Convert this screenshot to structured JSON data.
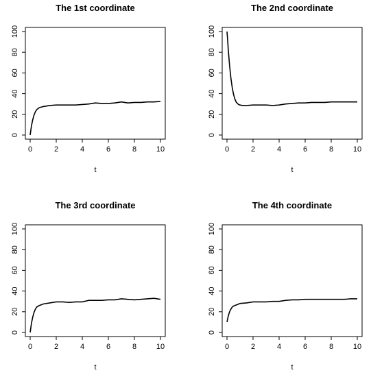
{
  "chart_data": [
    {
      "type": "line",
      "title": "The 1st coordinate",
      "xlabel": "t",
      "ylabel": "",
      "xlim": [
        0,
        10
      ],
      "ylim": [
        0,
        100
      ],
      "xticks": [
        0,
        2,
        4,
        6,
        8,
        10
      ],
      "yticks": [
        0,
        20,
        40,
        60,
        80,
        100
      ],
      "grid": false,
      "x": [
        0,
        0.1,
        0.2,
        0.3,
        0.4,
        0.5,
        0.7,
        1.0,
        1.5,
        2.0,
        2.5,
        3.0,
        3.5,
        4.0,
        4.5,
        5.0,
        5.5,
        6.0,
        6.5,
        7.0,
        7.5,
        8.0,
        8.5,
        9.0,
        9.5,
        10.0
      ],
      "y": [
        0,
        9,
        15,
        19.5,
        22.5,
        24.5,
        26.5,
        27.5,
        28.5,
        29,
        29,
        29,
        29,
        29.5,
        30,
        31,
        30.5,
        30.5,
        31,
        32,
        31,
        31.5,
        31.5,
        32,
        32,
        32.5
      ]
    },
    {
      "type": "line",
      "title": "The 2nd coordinate",
      "xlabel": "t",
      "ylabel": "",
      "xlim": [
        0,
        10
      ],
      "ylim": [
        0,
        100
      ],
      "xticks": [
        0,
        2,
        4,
        6,
        8,
        10
      ],
      "yticks": [
        0,
        20,
        40,
        60,
        80,
        100
      ],
      "grid": false,
      "x": [
        0,
        0.05,
        0.1,
        0.2,
        0.3,
        0.4,
        0.5,
        0.6,
        0.7,
        0.8,
        0.9,
        1.0,
        1.2,
        1.5,
        2.0,
        2.5,
        3.0,
        3.5,
        4.0,
        4.5,
        5.0,
        5.5,
        6.0,
        6.5,
        7.0,
        7.5,
        8.0,
        8.5,
        9.0,
        9.5,
        10.0
      ],
      "y": [
        100,
        92,
        82,
        67,
        55,
        46,
        39.5,
        35,
        32,
        30.5,
        29.5,
        29,
        28.5,
        28.5,
        29,
        29,
        29,
        28.5,
        29,
        30,
        30.5,
        31,
        31,
        31.5,
        31.5,
        31.5,
        32,
        32,
        32,
        32,
        32
      ]
    },
    {
      "type": "line",
      "title": "The 3rd coordinate",
      "xlabel": "t",
      "ylabel": "",
      "xlim": [
        0,
        10
      ],
      "ylim": [
        0,
        100
      ],
      "xticks": [
        0,
        2,
        4,
        6,
        8,
        10
      ],
      "yticks": [
        0,
        20,
        40,
        60,
        80,
        100
      ],
      "grid": false,
      "x": [
        0,
        0.1,
        0.2,
        0.3,
        0.4,
        0.5,
        0.7,
        1.0,
        1.5,
        2.0,
        2.5,
        3.0,
        3.5,
        4.0,
        4.5,
        5.0,
        5.5,
        6.0,
        6.5,
        7.0,
        7.5,
        8.0,
        8.5,
        9.0,
        9.5,
        10.0
      ],
      "y": [
        0,
        9,
        15,
        19.5,
        22.5,
        24.5,
        26,
        27.5,
        28.5,
        29.5,
        29.5,
        29,
        29.5,
        29.5,
        31,
        31,
        31,
        31.5,
        31.5,
        32.5,
        32,
        31.5,
        32,
        32.5,
        33,
        32
      ]
    },
    {
      "type": "line",
      "title": "The 4th coordinate",
      "xlabel": "t",
      "ylabel": "",
      "xlim": [
        0,
        10
      ],
      "ylim": [
        0,
        100
      ],
      "xticks": [
        0,
        2,
        4,
        6,
        8,
        10
      ],
      "yticks": [
        0,
        20,
        40,
        60,
        80,
        100
      ],
      "grid": false,
      "x": [
        0,
        0.1,
        0.2,
        0.3,
        0.4,
        0.5,
        0.7,
        1.0,
        1.5,
        2.0,
        2.5,
        3.0,
        3.5,
        4.0,
        4.5,
        5.0,
        5.5,
        6.0,
        6.5,
        7.0,
        7.5,
        8.0,
        8.5,
        9.0,
        9.5,
        10.0
      ],
      "y": [
        10,
        16,
        20,
        22.5,
        24.5,
        25.5,
        26.5,
        28,
        28.5,
        29.5,
        29.5,
        29.5,
        30,
        30,
        31,
        31.5,
        31.5,
        32,
        32,
        32,
        32,
        32,
        32,
        32,
        32.5,
        32.5
      ]
    }
  ],
  "style": {
    "line_color": "#000000",
    "background": "#ffffff"
  }
}
